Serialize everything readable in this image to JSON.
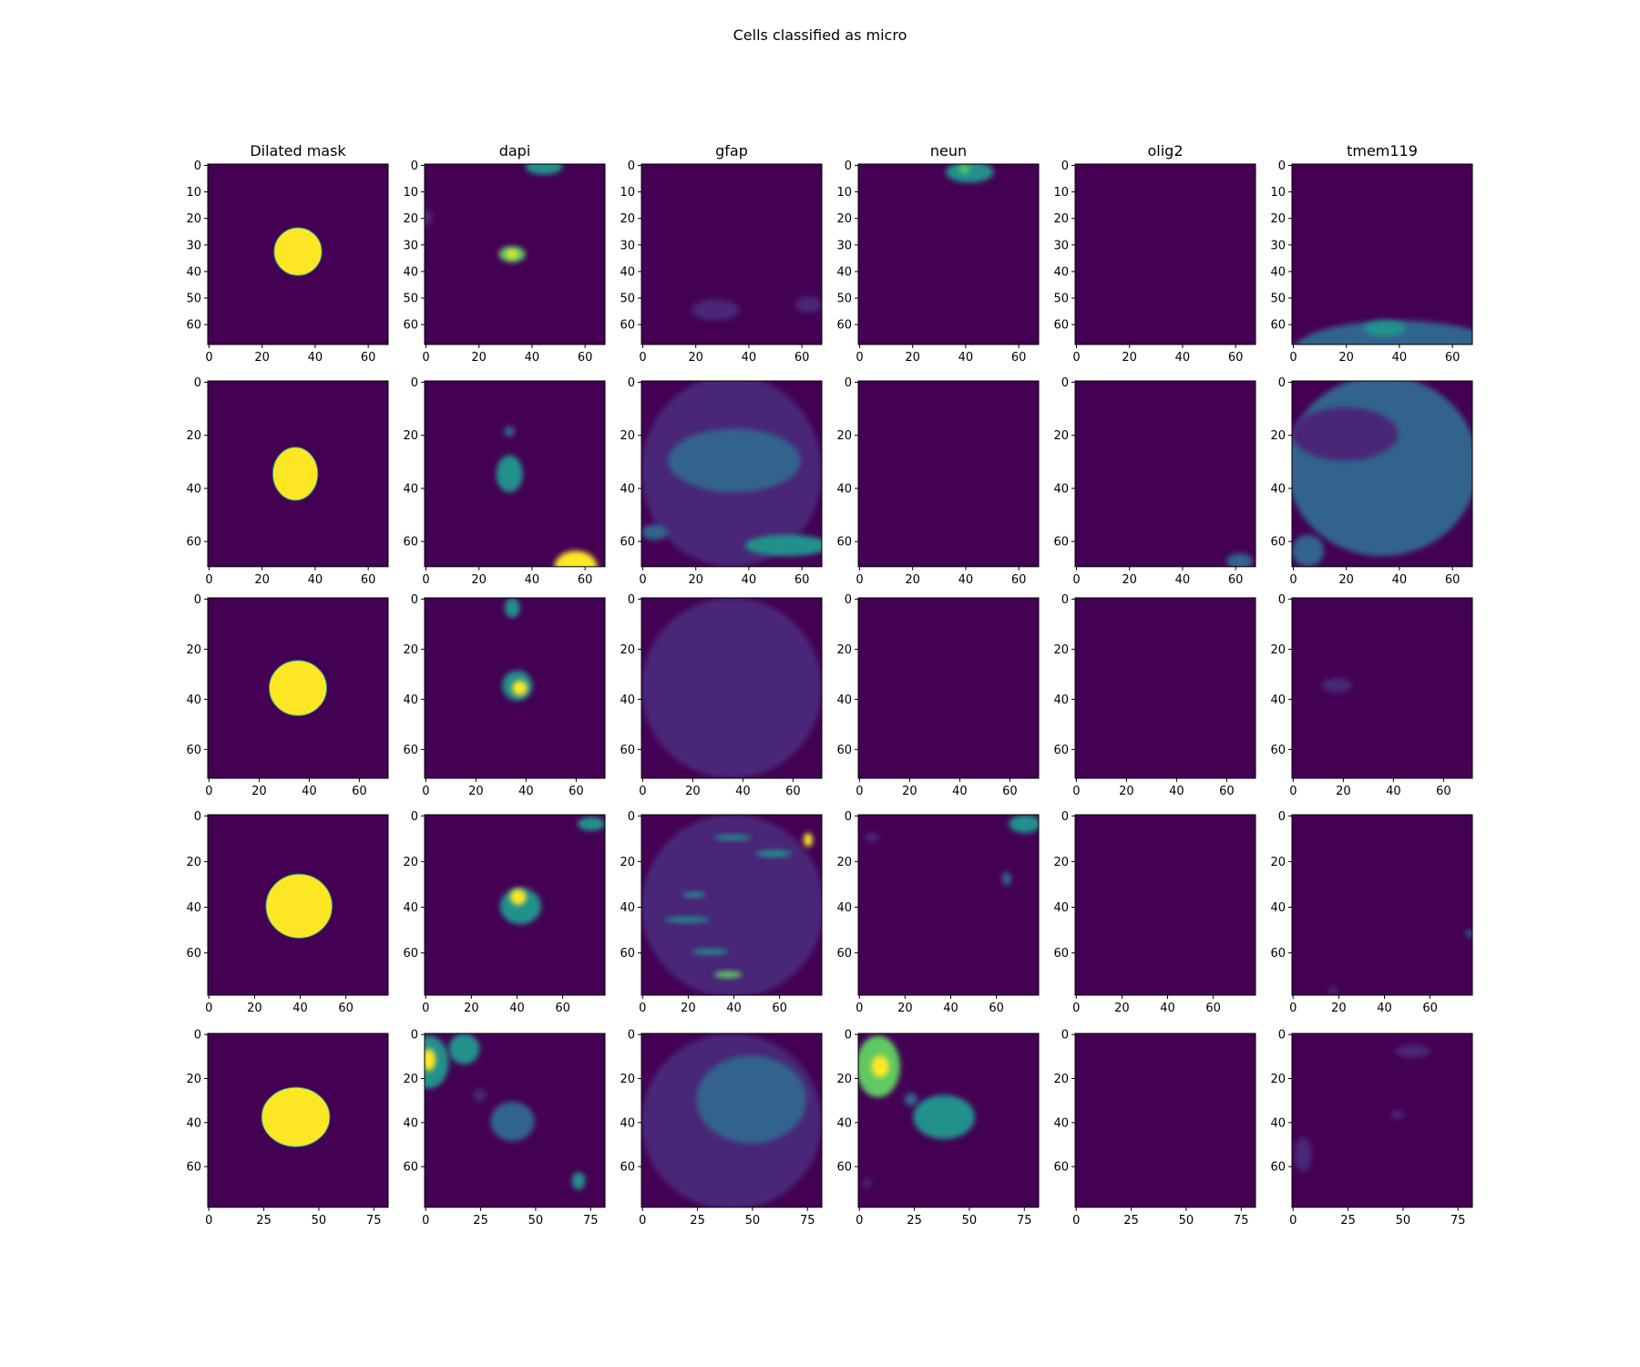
{
  "figure": {
    "title": "Cells classified as micro",
    "columns": [
      "Dilated mask",
      "dapi",
      "gfap",
      "neun",
      "olig2",
      "tmem119"
    ]
  },
  "colors": {
    "background": "#440154",
    "low": "#482677",
    "mid": "#33638d",
    "teal": "#21918c",
    "green": "#5ec962",
    "bright": "#fde725"
  },
  "chart_data": [
    {
      "row": 1,
      "type": "heatmap",
      "image_size": 68,
      "xlim": [
        0,
        68
      ],
      "ylim": [
        68,
        0
      ],
      "xticks": [
        0,
        20,
        40,
        60
      ],
      "yticks": [
        0,
        10,
        20,
        30,
        40,
        50,
        60
      ],
      "panels": {
        "Dilated mask": {
          "blobs": [
            {
              "cx": 34,
              "cy": 33,
              "rx": 9,
              "ry": 9,
              "c": "bright",
              "mask": true
            }
          ]
        },
        "dapi": {
          "blobs": [
            {
              "cx": 45,
              "cy": 1,
              "rx": 7,
              "ry": 3,
              "c": "teal"
            },
            {
              "cx": 0,
              "cy": 20,
              "rx": 3,
              "ry": 3,
              "c": "low"
            },
            {
              "cx": 33,
              "cy": 34,
              "rx": 5,
              "ry": 3,
              "c": "green"
            },
            {
              "cx": 33,
              "cy": 34,
              "rx": 2,
              "ry": 1.5,
              "c": "bright"
            }
          ]
        },
        "gfap": {
          "blobs": [
            {
              "cx": 28,
              "cy": 55,
              "rx": 9,
              "ry": 4,
              "c": "low"
            },
            {
              "cx": 63,
              "cy": 53,
              "rx": 5,
              "ry": 3,
              "c": "low"
            }
          ]
        },
        "neun": {
          "blobs": [
            {
              "cx": 42,
              "cy": 3,
              "rx": 9,
              "ry": 4,
              "c": "teal"
            },
            {
              "cx": 40,
              "cy": 2,
              "rx": 2,
              "ry": 1.5,
              "c": "green"
            }
          ]
        },
        "olig2": {
          "blobs": []
        },
        "tmem119": {
          "blobs": [
            {
              "cx": 40,
              "cy": 71,
              "rx": 40,
              "ry": 12,
              "c": "mid"
            },
            {
              "cx": 35,
              "cy": 62,
              "rx": 8,
              "ry": 3,
              "c": "teal"
            }
          ]
        }
      }
    },
    {
      "row": 2,
      "type": "heatmap",
      "image_size": 68,
      "xlim": [
        0,
        68
      ],
      "ylim": [
        70,
        0
      ],
      "xticks": [
        0,
        20,
        40,
        60
      ],
      "yticks": [
        0,
        20,
        40,
        60
      ],
      "panels": {
        "Dilated mask": {
          "blobs": [
            {
              "cx": 33,
              "cy": 35,
              "rx": 8.5,
              "ry": 10,
              "c": "bright",
              "mask": true
            }
          ]
        },
        "dapi": {
          "blobs": [
            {
              "cx": 32,
              "cy": 35,
              "rx": 5,
              "ry": 7,
              "c": "teal"
            },
            {
              "cx": 32,
              "cy": 19,
              "rx": 2,
              "ry": 2,
              "c": "mid"
            },
            {
              "cx": 57,
              "cy": 70,
              "rx": 8,
              "ry": 6,
              "c": "bright"
            }
          ]
        },
        "gfap": {
          "blobs": [
            {
              "cx": 34,
              "cy": 34,
              "rx": 34,
              "ry": 36,
              "c": "low"
            },
            {
              "cx": 35,
              "cy": 30,
              "rx": 25,
              "ry": 12,
              "c": "mid"
            },
            {
              "cx": 55,
              "cy": 62,
              "rx": 16,
              "ry": 4,
              "c": "teal"
            },
            {
              "cx": 5,
              "cy": 57,
              "rx": 5,
              "ry": 3,
              "c": "mid"
            }
          ]
        },
        "neun": {
          "blobs": []
        },
        "olig2": {
          "blobs": [
            {
              "cx": 62,
              "cy": 68,
              "rx": 5,
              "ry": 3,
              "c": "mid"
            }
          ]
        },
        "tmem119": {
          "blobs": [
            {
              "cx": 34,
              "cy": 32,
              "rx": 36,
              "ry": 34,
              "c": "mid"
            },
            {
              "cx": 20,
              "cy": 20,
              "rx": 20,
              "ry": 10,
              "c": "low"
            },
            {
              "cx": 6,
              "cy": 64,
              "rx": 6,
              "ry": 6,
              "c": "mid"
            }
          ]
        }
      }
    },
    {
      "row": 3,
      "type": "heatmap",
      "image_size": 72,
      "xlim": [
        0,
        72
      ],
      "ylim": [
        72,
        0
      ],
      "xticks": [
        0,
        20,
        40,
        60
      ],
      "yticks": [
        0,
        20,
        40,
        60
      ],
      "panels": {
        "Dilated mask": {
          "blobs": [
            {
              "cx": 36,
              "cy": 36,
              "rx": 11.5,
              "ry": 11,
              "c": "bright",
              "mask": true
            }
          ]
        },
        "dapi": {
          "blobs": [
            {
              "cx": 35,
              "cy": 4,
              "rx": 3,
              "ry": 4,
              "c": "teal"
            },
            {
              "cx": 37,
              "cy": 35,
              "rx": 6,
              "ry": 6,
              "c": "teal"
            },
            {
              "cx": 38,
              "cy": 36,
              "rx": 3,
              "ry": 3,
              "c": "bright"
            }
          ]
        },
        "gfap": {
          "blobs": [
            {
              "cx": 36,
              "cy": 36,
              "rx": 36,
              "ry": 36,
              "c": "low"
            }
          ]
        },
        "neun": {
          "blobs": []
        },
        "olig2": {
          "blobs": []
        },
        "tmem119": {
          "blobs": [
            {
              "cx": 18,
              "cy": 35,
              "rx": 6,
              "ry": 3,
              "c": "low"
            }
          ]
        }
      }
    },
    {
      "row": 4,
      "type": "heatmap",
      "image_size": 79,
      "xlim": [
        0,
        79
      ],
      "ylim": [
        79,
        0
      ],
      "xticks": [
        0,
        20,
        40,
        60
      ],
      "yticks": [
        0,
        20,
        40,
        60
      ],
      "panels": {
        "Dilated mask": {
          "blobs": [
            {
              "cx": 40,
              "cy": 40,
              "rx": 14.5,
              "ry": 14,
              "c": "bright",
              "mask": true
            }
          ]
        },
        "dapi": {
          "blobs": [
            {
              "cx": 42,
              "cy": 40,
              "rx": 9,
              "ry": 8,
              "c": "teal"
            },
            {
              "cx": 41,
              "cy": 36,
              "rx": 3.5,
              "ry": 3.5,
              "c": "bright"
            },
            {
              "cx": 73,
              "cy": 4,
              "rx": 6,
              "ry": 3,
              "c": "teal"
            }
          ]
        },
        "gfap": {
          "blobs": [
            {
              "cx": 40,
              "cy": 40,
              "rx": 40,
              "ry": 40,
              "c": "low"
            },
            {
              "cx": 58,
              "cy": 17,
              "rx": 8,
              "ry": 1.5,
              "c": "teal"
            },
            {
              "cx": 73,
              "cy": 11,
              "rx": 2,
              "ry": 3,
              "c": "bright"
            },
            {
              "cx": 40,
              "cy": 10,
              "rx": 8,
              "ry": 1.2,
              "c": "teal"
            },
            {
              "cx": 23,
              "cy": 35,
              "rx": 5,
              "ry": 1.2,
              "c": "teal"
            },
            {
              "cx": 20,
              "cy": 46,
              "rx": 10,
              "ry": 1.2,
              "c": "teal"
            },
            {
              "cx": 30,
              "cy": 60,
              "rx": 8,
              "ry": 1.2,
              "c": "teal"
            },
            {
              "cx": 38,
              "cy": 70,
              "rx": 6,
              "ry": 1.5,
              "c": "green"
            }
          ]
        },
        "neun": {
          "blobs": [
            {
              "cx": 73,
              "cy": 4,
              "rx": 7,
              "ry": 4,
              "c": "teal"
            },
            {
              "cx": 65,
              "cy": 28,
              "rx": 2,
              "ry": 3,
              "c": "mid"
            },
            {
              "cx": 6,
              "cy": 10,
              "rx": 3,
              "ry": 2,
              "c": "low"
            }
          ]
        },
        "olig2": {
          "blobs": []
        },
        "tmem119": {
          "blobs": [
            {
              "cx": 78,
              "cy": 52,
              "rx": 2,
              "ry": 1.5,
              "c": "mid"
            },
            {
              "cx": 18,
              "cy": 77,
              "rx": 2,
              "ry": 2,
              "c": "low"
            }
          ]
        }
      }
    },
    {
      "row": 5,
      "type": "heatmap",
      "image_size": 82,
      "xlim": [
        0,
        82
      ],
      "ylim": [
        79,
        0
      ],
      "xticks": [
        0,
        25,
        50,
        75
      ],
      "yticks": [
        0,
        20,
        40,
        60
      ],
      "panels": {
        "Dilated mask": {
          "blobs": [
            {
              "cx": 40,
              "cy": 38,
              "rx": 15.5,
              "ry": 13.5,
              "c": "bright",
              "mask": true
            }
          ]
        },
        "dapi": {
          "blobs": [
            {
              "cx": 2,
              "cy": 13,
              "rx": 9,
              "ry": 12,
              "c": "teal"
            },
            {
              "cx": 2,
              "cy": 12,
              "rx": 3,
              "ry": 5,
              "c": "bright"
            },
            {
              "cx": 18,
              "cy": 7,
              "rx": 7,
              "ry": 7,
              "c": "teal"
            },
            {
              "cx": 40,
              "cy": 40,
              "rx": 10,
              "ry": 9,
              "c": "mid"
            },
            {
              "cx": 70,
              "cy": 67,
              "rx": 3,
              "ry": 4,
              "c": "teal"
            },
            {
              "cx": 25,
              "cy": 28,
              "rx": 3,
              "ry": 3,
              "c": "low"
            }
          ]
        },
        "gfap": {
          "blobs": [
            {
              "cx": 41,
              "cy": 40,
              "rx": 41,
              "ry": 40,
              "c": "low"
            },
            {
              "cx": 50,
              "cy": 30,
              "rx": 25,
              "ry": 20,
              "c": "mid"
            }
          ]
        },
        "neun": {
          "blobs": [
            {
              "cx": 9,
              "cy": 15,
              "rx": 10,
              "ry": 14,
              "c": "green"
            },
            {
              "cx": 10,
              "cy": 15,
              "rx": 4,
              "ry": 5,
              "c": "bright"
            },
            {
              "cx": 39,
              "cy": 38,
              "rx": 14,
              "ry": 10,
              "c": "teal"
            },
            {
              "cx": 24,
              "cy": 30,
              "rx": 3,
              "ry": 3,
              "c": "mid"
            },
            {
              "cx": 4,
              "cy": 68,
              "rx": 2,
              "ry": 2,
              "c": "low"
            }
          ]
        },
        "olig2": {
          "blobs": []
        },
        "tmem119": {
          "blobs": [
            {
              "cx": 55,
              "cy": 8,
              "rx": 8,
              "ry": 3,
              "c": "low"
            },
            {
              "cx": 48,
              "cy": 37,
              "rx": 3,
              "ry": 2,
              "c": "low"
            },
            {
              "cx": 5,
              "cy": 55,
              "rx": 4,
              "ry": 8,
              "c": "low"
            }
          ]
        }
      }
    }
  ]
}
